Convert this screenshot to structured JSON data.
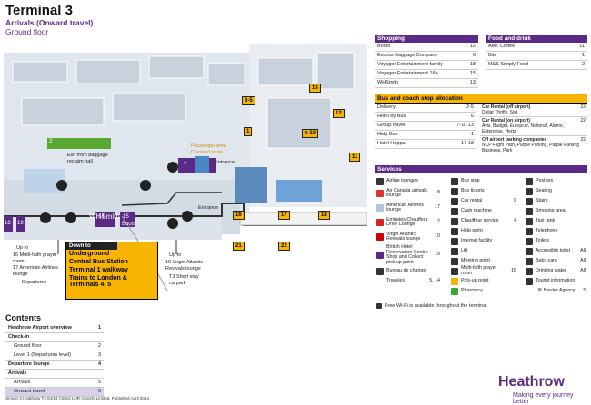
{
  "header": {
    "title": "Terminal 3",
    "subtitle": "Arrivals (Onward travel)",
    "floor": "Ground floor"
  },
  "map": {
    "gates": [
      {
        "label": "1",
        "x": 1
      },
      {
        "label": "2"
      }
    ],
    "labels": {
      "exit_baggage": "Exit from baggage reclaim hall",
      "entrance1": "Entrance",
      "entrance2": "Entrance",
      "passenger_area": "Passenger area Covered route",
      "up_to_left": "Up to",
      "multi_faith": "Multi-faith prayer room",
      "multi_faith_num": "16",
      "american_lounge_num": "17",
      "american_lounge": "American Airlines lounge",
      "departures": "Departures",
      "up_to_right": "Up to",
      "virgin_lounge_num": "10",
      "virgin_lounge": "Virgin Atlantic Revivals lounge",
      "short_stay": "T3 Short stay carpark",
      "whsmith": "WHSmith",
      "boots": "Boots"
    },
    "yellow_labels": [
      "3-5",
      "13",
      "12",
      "1",
      "6-10",
      "11",
      "16",
      "17",
      "18",
      "21",
      "22"
    ],
    "purple_labels": [
      "7",
      "14",
      "15",
      "18",
      "19",
      "3"
    ]
  },
  "down_to": {
    "header": "Down to",
    "items": [
      "Underground",
      "Central Bus Station",
      "Terminal 1 walkway",
      "Trains to London & Terminals 4, 5"
    ]
  },
  "shopping": {
    "header": "Shopping",
    "items": [
      {
        "name": "Boots",
        "num": "12"
      },
      {
        "name": "Excess Baggage Company",
        "num": "6"
      },
      {
        "name": "Voyager Entertainment family",
        "num": "18"
      },
      {
        "name": "Voyager Entertainment 18+",
        "num": "15"
      },
      {
        "name": "WHSmith",
        "num": "13"
      }
    ]
  },
  "food": {
    "header": "Food and drink",
    "items": [
      {
        "name": "AMT Coffee",
        "num": "11"
      },
      {
        "name": "Bite",
        "num": "1"
      },
      {
        "name": "M&S Simply Food",
        "num": "2"
      }
    ]
  },
  "bus": {
    "header": "Bus and coach stop allocation",
    "left": [
      {
        "name": "Delivery",
        "num": "2-5"
      },
      {
        "name": "Hotel by Bus",
        "num": "6"
      },
      {
        "name": "Group travel",
        "num": "7-10  13"
      },
      {
        "name": "Help Bus",
        "num": "1"
      },
      {
        "name": "Hotel Hoppa",
        "num": "17-18"
      }
    ],
    "right": [
      {
        "name": "Car Rental (off airport)",
        "sub": "Dollar Thrifty, Sixt",
        "num": "22"
      },
      {
        "name": "Car Rental (on airport)",
        "sub": "Avis, Budget, Europcar, National, Alamo, Enterprise, Hertz",
        "num": "22"
      },
      {
        "name": "Off airport parking companies",
        "sub": "NCP Flight Path, Purple Parking, Purple Parking Business, Park",
        "num": "22"
      }
    ]
  },
  "services": {
    "header": "Services",
    "col1": [
      {
        "name": "Airline lounges",
        "num": ""
      },
      {
        "name": "Air Canada arrivals lounge",
        "num": "8"
      },
      {
        "name": "American Airlines lounge",
        "num": "17"
      },
      {
        "name": "Emirates Chauffeur Drive Lounge",
        "num": "2"
      },
      {
        "name": "Virgin Atlantic Revivals lounge",
        "num": "10"
      },
      {
        "name": "British Hotel Reservation Centre Shop and Collect pick up point",
        "num": "19"
      },
      {
        "name": "Bureau de change",
        "num": ""
      },
      {
        "name": "Travelex",
        "num": "5, 14"
      }
    ],
    "col2": [
      {
        "name": "Bus stop",
        "num": ""
      },
      {
        "name": "Bus tickets",
        "num": ""
      },
      {
        "name": "Car rental",
        "num": "9"
      },
      {
        "name": "Cash machine",
        "num": ""
      },
      {
        "name": "Chauffeur service",
        "num": "4"
      },
      {
        "name": "Help point",
        "num": ""
      },
      {
        "name": "Internet facility",
        "num": ""
      },
      {
        "name": "Lift",
        "num": ""
      },
      {
        "name": "Meeting point",
        "num": ""
      },
      {
        "name": "Multi-faith prayer room",
        "num": "16"
      },
      {
        "name": "Pick-up point",
        "num": ""
      },
      {
        "name": "Pharmacy",
        "num": ""
      }
    ],
    "col3": [
      {
        "name": "Postbox",
        "num": ""
      },
      {
        "name": "Seating",
        "num": ""
      },
      {
        "name": "Stairs",
        "num": ""
      },
      {
        "name": "Smoking area",
        "num": ""
      },
      {
        "name": "Taxi rank",
        "num": ""
      },
      {
        "name": "Telephone",
        "num": ""
      },
      {
        "name": "Toilets",
        "num": ""
      },
      {
        "name": "Accessible toilet",
        "num": "All"
      },
      {
        "name": "Baby care",
        "num": "All"
      },
      {
        "name": "Drinking water",
        "num": "All"
      },
      {
        "name": "Tourist information",
        "num": ""
      },
      {
        "name": "UK Border Agency",
        "num": "3"
      }
    ],
    "wifi": "Free Wi-Fi is available throughout the terminal"
  },
  "contents": {
    "header": "Contents",
    "rows": [
      {
        "label": "Heathrow Airport overview",
        "num": "1",
        "bold": true,
        "sub": false,
        "sel": false
      },
      {
        "label": "Check-in",
        "num": "",
        "bold": true,
        "sub": false,
        "sel": false
      },
      {
        "label": "Ground floor",
        "num": "2",
        "bold": false,
        "sub": true,
        "sel": false
      },
      {
        "label": "Level 1 (Departures level)",
        "num": "3",
        "bold": false,
        "sub": true,
        "sel": false
      },
      {
        "label": "Departure lounge",
        "num": "4",
        "bold": true,
        "sub": false,
        "sel": false
      },
      {
        "label": "Arrivals",
        "num": "",
        "bold": true,
        "sub": false,
        "sel": false
      },
      {
        "label": "Arrivals",
        "num": "5",
        "bold": false,
        "sub": true,
        "sel": false
      },
      {
        "label": "Onward travel",
        "num": "6",
        "bold": false,
        "sub": true,
        "sel": true
      }
    ]
  },
  "footer": "Version 3 Heathrow T3 04/14 ©2014 LHR Airports Limited. Published April 2014.",
  "brand": {
    "logo": "Heathrow",
    "tagline": "Making every journey better",
    "purple": "#5b2a86",
    "yellow": "#f7b500"
  }
}
